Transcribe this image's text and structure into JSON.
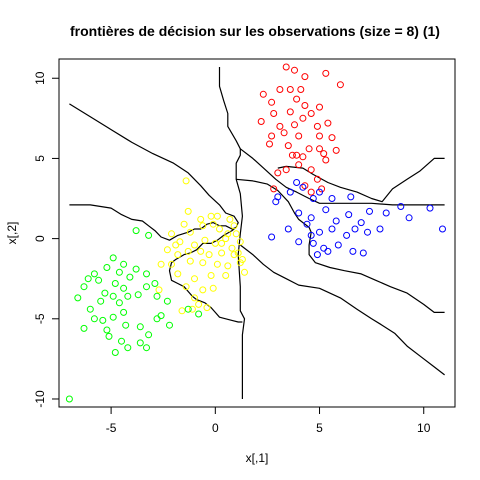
{
  "chart_data": {
    "type": "scatter",
    "title": "frontières de décision sur les observations (size = 8) (1)",
    "xlabel": "x[,1]",
    "ylabel": "x[,2]",
    "xlim": [
      -7.5,
      11.5
    ],
    "ylim": [
      -10.5,
      11.2
    ],
    "xticks": [
      -5,
      0,
      5,
      10
    ],
    "yticks": [
      -10,
      -5,
      0,
      5,
      10
    ],
    "grid": false,
    "marker": "open-circle",
    "series": [
      {
        "color": "#ff0000",
        "points": [
          [
            3.4,
            10.7
          ],
          [
            3.8,
            10.5
          ],
          [
            4.3,
            10.1
          ],
          [
            2.3,
            9.0
          ],
          [
            3.1,
            9.3
          ],
          [
            3.6,
            9.3
          ],
          [
            4.1,
            9.3
          ],
          [
            5.3,
            10.3
          ],
          [
            6.0,
            9.6
          ],
          [
            2.7,
            8.5
          ],
          [
            3.9,
            8.7
          ],
          [
            4.3,
            8.3
          ],
          [
            5.0,
            8.2
          ],
          [
            2.8,
            7.8
          ],
          [
            3.6,
            7.9
          ],
          [
            4.2,
            7.5
          ],
          [
            4.6,
            7.8
          ],
          [
            5.4,
            7.2
          ],
          [
            2.2,
            7.3
          ],
          [
            3.1,
            7.0
          ],
          [
            3.8,
            7.1
          ],
          [
            4.9,
            7.0
          ],
          [
            2.7,
            6.4
          ],
          [
            3.3,
            6.6
          ],
          [
            4.0,
            6.4
          ],
          [
            5.0,
            6.4
          ],
          [
            5.6,
            6.3
          ],
          [
            2.6,
            5.9
          ],
          [
            3.5,
            5.8
          ],
          [
            3.9,
            5.2
          ],
          [
            4.5,
            5.6
          ],
          [
            5.2,
            5.3
          ],
          [
            5.8,
            5.5
          ],
          [
            3.7,
            5.2
          ],
          [
            4.2,
            5.1
          ],
          [
            5.0,
            5.6
          ],
          [
            5.3,
            4.9
          ],
          [
            3.0,
            4.1
          ],
          [
            3.4,
            4.3
          ],
          [
            4.0,
            4.6
          ],
          [
            4.6,
            4.3
          ],
          [
            4.9,
            3.7
          ],
          [
            2.8,
            3.1
          ],
          [
            4.3,
            3.3
          ],
          [
            4.6,
            2.9
          ],
          [
            5.1,
            3.1
          ]
        ]
      },
      {
        "color": "#0000ff",
        "points": [
          [
            3.9,
            3.5
          ],
          [
            4.2,
            3.2
          ],
          [
            3.0,
            2.6
          ],
          [
            3.6,
            2.9
          ],
          [
            4.7,
            2.5
          ],
          [
            5.0,
            2.9
          ],
          [
            5.6,
            2.5
          ],
          [
            6.5,
            2.6
          ],
          [
            7.4,
            1.7
          ],
          [
            8.2,
            1.6
          ],
          [
            8.9,
            2.0
          ],
          [
            9.3,
            1.3
          ],
          [
            10.3,
            1.9
          ],
          [
            10.9,
            0.6
          ],
          [
            2.9,
            2.3
          ],
          [
            4.0,
            1.6
          ],
          [
            4.6,
            1.3
          ],
          [
            5.3,
            1.8
          ],
          [
            5.8,
            1.1
          ],
          [
            6.4,
            1.5
          ],
          [
            7.0,
            1.0
          ],
          [
            7.9,
            0.6
          ],
          [
            2.7,
            0.1
          ],
          [
            3.5,
            0.6
          ],
          [
            4.4,
            0.9
          ],
          [
            5.0,
            0.4
          ],
          [
            5.6,
            0.6
          ],
          [
            6.3,
            0.2
          ],
          [
            6.7,
            0.6
          ],
          [
            7.3,
            0.4
          ],
          [
            4.7,
            -0.3
          ],
          [
            5.2,
            -0.6
          ],
          [
            5.9,
            -0.4
          ],
          [
            6.6,
            -0.8
          ],
          [
            7.1,
            -0.9
          ],
          [
            4.9,
            -1.0
          ],
          [
            5.4,
            -0.8
          ],
          [
            4.0,
            -0.2
          ],
          [
            4.6,
            0.2
          ]
        ]
      },
      {
        "color": "#ffff00",
        "points": [
          [
            -1.4,
            3.6
          ],
          [
            0.1,
            1.4
          ],
          [
            -1.3,
            1.7
          ],
          [
            -0.7,
            1.2
          ],
          [
            -0.2,
            1.4
          ],
          [
            -0.1,
            0.9
          ],
          [
            0.7,
            1.2
          ],
          [
            0.9,
            0.8
          ],
          [
            -1.5,
            0.9
          ],
          [
            -1.2,
            0.4
          ],
          [
            -0.6,
            0.8
          ],
          [
            0.2,
            0.6
          ],
          [
            0.6,
            0.3
          ],
          [
            1.0,
            0.3
          ],
          [
            -2.1,
            0.3
          ],
          [
            -1.7,
            -0.2
          ],
          [
            -1.0,
            -0.4
          ],
          [
            -0.5,
            -0.1
          ],
          [
            0.0,
            -0.3
          ],
          [
            0.5,
            0.0
          ],
          [
            1.2,
            -0.2
          ],
          [
            -2.3,
            -0.7
          ],
          [
            -1.8,
            -1.0
          ],
          [
            -1.3,
            -0.8
          ],
          [
            -0.7,
            -0.8
          ],
          [
            0.3,
            -0.9
          ],
          [
            0.8,
            -0.6
          ],
          [
            1.1,
            -0.9
          ],
          [
            -2.6,
            -1.6
          ],
          [
            -2.1,
            -1.6
          ],
          [
            -1.2,
            -1.4
          ],
          [
            -0.6,
            -1.5
          ],
          [
            0.1,
            -1.6
          ],
          [
            0.6,
            -1.7
          ],
          [
            1.2,
            -1.5
          ],
          [
            -1.8,
            -2.2
          ],
          [
            -1.0,
            -2.5
          ],
          [
            -0.2,
            -2.3
          ],
          [
            0.5,
            -2.3
          ],
          [
            1.4,
            -2.1
          ],
          [
            -1.4,
            -3.0
          ],
          [
            -0.6,
            -3.2
          ],
          [
            -0.1,
            -3.1
          ],
          [
            -2.7,
            -3.2
          ],
          [
            -1.1,
            -4.4
          ],
          [
            -0.8,
            -4.1
          ],
          [
            -1.6,
            -4.5
          ],
          [
            -0.4,
            -4.3
          ],
          [
            -1.0,
            -3.7
          ],
          [
            0.9,
            -1.0
          ],
          [
            1.3,
            -1.3
          ],
          [
            -1.9,
            -0.4
          ],
          [
            -0.3,
            -1.0
          ],
          [
            0.3,
            -0.3
          ]
        ]
      },
      {
        "color": "#00ff00",
        "points": [
          [
            -3.8,
            0.5
          ],
          [
            -3.2,
            0.2
          ],
          [
            -4.4,
            -1.6
          ],
          [
            -4.9,
            -1.2
          ],
          [
            -5.2,
            -1.8
          ],
          [
            -5.8,
            -2.2
          ],
          [
            -6.1,
            -2.5
          ],
          [
            -4.6,
            -2.1
          ],
          [
            -4.8,
            -2.8
          ],
          [
            -5.6,
            -2.6
          ],
          [
            -6.3,
            -3.0
          ],
          [
            -5.3,
            -3.4
          ],
          [
            -4.4,
            -3.1
          ],
          [
            -4.1,
            -2.4
          ],
          [
            -3.8,
            -1.9
          ],
          [
            -3.3,
            -2.2
          ],
          [
            -2.9,
            -2.8
          ],
          [
            -4.9,
            -3.6
          ],
          [
            -5.5,
            -3.9
          ],
          [
            -6.6,
            -3.7
          ],
          [
            -6.0,
            -4.4
          ],
          [
            -4.6,
            -4.0
          ],
          [
            -4.2,
            -3.6
          ],
          [
            -3.7,
            -3.5
          ],
          [
            -3.3,
            -3.0
          ],
          [
            -2.8,
            -3.6
          ],
          [
            -2.3,
            -3.9
          ],
          [
            -4.4,
            -4.6
          ],
          [
            -4.9,
            -4.9
          ],
          [
            -5.4,
            -5.1
          ],
          [
            -5.8,
            -5.0
          ],
          [
            -4.3,
            -5.4
          ],
          [
            -3.6,
            -5.5
          ],
          [
            -2.8,
            -5.0
          ],
          [
            -2.2,
            -5.4
          ],
          [
            -3.2,
            -6.0
          ],
          [
            -4.5,
            -6.4
          ],
          [
            -5.1,
            -6.1
          ],
          [
            -3.6,
            -6.5
          ],
          [
            -4.2,
            -6.8
          ],
          [
            -4.8,
            -7.1
          ],
          [
            -3.3,
            -6.8
          ],
          [
            -6.3,
            -5.6
          ],
          [
            -7.0,
            -10.0
          ],
          [
            -1.3,
            -4.4
          ],
          [
            -0.8,
            -4.7
          ],
          [
            -5.2,
            -5.7
          ],
          [
            -2.6,
            -4.8
          ]
        ]
      }
    ],
    "boundaries": [
      [
        [
          -7.0,
          8.4
        ],
        [
          -6.0,
          7.6
        ],
        [
          -5.0,
          6.8
        ],
        [
          -4.0,
          6.0
        ],
        [
          -3.0,
          5.3
        ],
        [
          -2.0,
          4.7
        ],
        [
          -1.3,
          4.1
        ],
        [
          -0.7,
          3.3
        ],
        [
          -0.3,
          2.7
        ],
        [
          0.2,
          2.1
        ],
        [
          0.5,
          1.6
        ],
        [
          0.9,
          1.4
        ],
        [
          1.1,
          1.0
        ],
        [
          1.0,
          0.7
        ]
      ],
      [
        [
          0.2,
          10.7
        ],
        [
          0.2,
          9.5
        ],
        [
          0.4,
          8.6
        ],
        [
          0.6,
          7.8
        ],
        [
          0.6,
          7.0
        ],
        [
          1.0,
          6.1
        ],
        [
          1.2,
          5.6
        ],
        [
          1.2,
          5.2
        ],
        [
          1.0,
          4.7
        ],
        [
          1.0,
          3.7
        ],
        [
          1.2,
          2.8
        ],
        [
          1.3,
          1.4
        ],
        [
          1.2,
          0.3
        ],
        [
          1.1,
          -1.0
        ],
        [
          1.2,
          -3.0
        ],
        [
          1.2,
          -4.5
        ],
        [
          1.4,
          -5.0
        ],
        [
          1.3,
          -6.0
        ],
        [
          1.3,
          -10.0
        ]
      ],
      [
        [
          -7.0,
          2.1
        ],
        [
          -6.0,
          2.1
        ],
        [
          -5.0,
          1.9
        ],
        [
          -4.5,
          1.5
        ],
        [
          -4.0,
          1.2
        ],
        [
          -3.5,
          1.1
        ],
        [
          -3.2,
          0.8
        ],
        [
          -2.9,
          0.5
        ],
        [
          -2.6,
          0.1
        ],
        [
          -2.2,
          -0.1
        ],
        [
          -1.8,
          0.2
        ],
        [
          -1.3,
          0.4
        ],
        [
          -1.0,
          0.6
        ],
        [
          -0.7,
          0.6
        ],
        [
          -0.4,
          0.9
        ],
        [
          -0.1,
          1.0
        ],
        [
          0.2,
          0.8
        ],
        [
          0.5,
          0.8
        ],
        [
          0.8,
          0.6
        ],
        [
          1.0,
          0.7
        ]
      ],
      [
        [
          1.0,
          0.7
        ],
        [
          0.8,
          0.5
        ],
        [
          0.4,
          0.2
        ],
        [
          0.1,
          -0.1
        ],
        [
          -0.2,
          -0.3
        ],
        [
          -0.6,
          -0.3
        ],
        [
          -0.9,
          -0.7
        ],
        [
          -1.2,
          -0.9
        ],
        [
          -1.5,
          -1.0
        ],
        [
          -1.9,
          -1.3
        ],
        [
          -2.1,
          -1.5
        ],
        [
          -2.2,
          -2.0
        ],
        [
          -2.1,
          -2.6
        ],
        [
          -1.8,
          -2.8
        ],
        [
          -1.5,
          -3.0
        ],
        [
          -1.3,
          -3.3
        ],
        [
          -1.1,
          -3.6
        ],
        [
          -0.9,
          -3.8
        ],
        [
          -0.5,
          -4.0
        ],
        [
          -0.2,
          -4.3
        ],
        [
          0.0,
          -4.6
        ],
        [
          0.2,
          -4.9
        ],
        [
          0.5,
          -5.0
        ],
        [
          0.8,
          -5.1
        ],
        [
          1.1,
          -5.2
        ],
        [
          1.3,
          -5.2
        ]
      ],
      [
        [
          1.2,
          5.6
        ],
        [
          1.8,
          5.0
        ],
        [
          2.4,
          4.3
        ],
        [
          2.9,
          3.7
        ],
        [
          3.4,
          3.2
        ],
        [
          3.9,
          2.9
        ],
        [
          4.5,
          2.5
        ],
        [
          5.0,
          2.2
        ],
        [
          5.6,
          2.2
        ],
        [
          6.5,
          2.2
        ],
        [
          7.5,
          2.2
        ],
        [
          8.5,
          2.1
        ],
        [
          9.5,
          2.1
        ],
        [
          10.5,
          2.1
        ],
        [
          11.0,
          2.1
        ]
      ],
      [
        [
          1.0,
          3.7
        ],
        [
          1.8,
          3.6
        ],
        [
          2.5,
          3.4
        ],
        [
          3.0,
          3.0
        ],
        [
          3.5,
          2.3
        ],
        [
          3.8,
          1.6
        ],
        [
          4.0,
          1.2
        ],
        [
          4.5,
          0.7
        ],
        [
          4.6,
          0.4
        ],
        [
          4.5,
          -0.4
        ],
        [
          4.5,
          -1.0
        ],
        [
          4.8,
          -1.5
        ],
        [
          5.5,
          -1.8
        ],
        [
          6.2,
          -2.0
        ],
        [
          7.0,
          -2.2
        ],
        [
          7.7,
          -2.6
        ],
        [
          8.4,
          -3.0
        ],
        [
          9.2,
          -3.4
        ],
        [
          10.0,
          -4.1
        ],
        [
          10.5,
          -4.6
        ],
        [
          11.0,
          -4.6
        ]
      ],
      [
        [
          1.2,
          -0.4
        ],
        [
          1.8,
          -1.0
        ],
        [
          2.3,
          -1.6
        ],
        [
          2.8,
          -2.1
        ],
        [
          3.4,
          -2.5
        ],
        [
          4.0,
          -2.9
        ],
        [
          5.0,
          -3.1
        ],
        [
          6.0,
          -3.7
        ],
        [
          6.8,
          -4.4
        ],
        [
          7.5,
          -5.0
        ],
        [
          8.0,
          -5.4
        ],
        [
          8.6,
          -5.9
        ],
        [
          9.2,
          -6.7
        ],
        [
          9.9,
          -7.4
        ],
        [
          10.5,
          -8.0
        ],
        [
          11.0,
          -8.5
        ]
      ],
      [
        [
          3.0,
          4.4
        ],
        [
          3.4,
          4.5
        ],
        [
          4.2,
          4.4
        ],
        [
          4.7,
          4.0
        ],
        [
          5.4,
          3.5
        ],
        [
          6.0,
          3.2
        ],
        [
          6.8,
          2.9
        ],
        [
          7.5,
          2.5
        ],
        [
          8.0,
          2.3
        ],
        [
          8.5,
          3.1
        ],
        [
          9.2,
          3.7
        ],
        [
          9.8,
          4.2
        ],
        [
          10.5,
          5.0
        ],
        [
          11.0,
          5.0
        ]
      ]
    ]
  }
}
